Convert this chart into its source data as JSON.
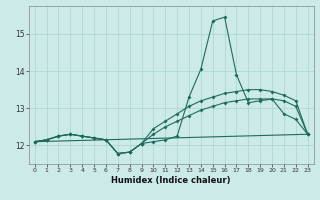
{
  "xlabel": "Humidex (Indice chaleur)",
  "background_color": "#cceae7",
  "grid_color": "#aad4d0",
  "line_color": "#1e6b5e",
  "xlim": [
    -0.5,
    23.5
  ],
  "ylim": [
    11.5,
    15.75
  ],
  "xticks": [
    0,
    1,
    2,
    3,
    4,
    5,
    6,
    7,
    8,
    9,
    10,
    11,
    12,
    13,
    14,
    15,
    16,
    17,
    18,
    19,
    20,
    21,
    22,
    23
  ],
  "yticks": [
    12,
    13,
    14,
    15
  ],
  "line1_x": [
    0,
    1,
    2,
    3,
    4,
    5,
    6,
    7,
    8,
    9,
    10,
    11,
    12,
    13,
    14,
    15,
    16,
    17,
    18,
    19,
    20,
    21,
    22,
    23
  ],
  "line1_y": [
    12.1,
    12.15,
    12.25,
    12.3,
    12.25,
    12.2,
    12.15,
    11.78,
    11.82,
    12.05,
    12.1,
    12.15,
    12.25,
    13.3,
    14.05,
    15.35,
    15.45,
    13.9,
    13.15,
    13.2,
    13.25,
    12.85,
    12.7,
    12.3
  ],
  "line2_x": [
    0,
    1,
    2,
    3,
    4,
    5,
    6,
    7,
    8,
    9,
    10,
    11,
    12,
    13,
    14,
    15,
    16,
    17,
    18,
    19,
    20,
    21,
    22,
    23
  ],
  "line2_y": [
    12.1,
    12.15,
    12.25,
    12.3,
    12.25,
    12.2,
    12.15,
    11.78,
    11.82,
    12.05,
    12.45,
    12.65,
    12.85,
    13.05,
    13.2,
    13.3,
    13.4,
    13.45,
    13.5,
    13.5,
    13.45,
    13.35,
    13.2,
    12.3
  ],
  "line3_x": [
    0,
    1,
    2,
    3,
    4,
    5,
    6,
    7,
    8,
    9,
    10,
    11,
    12,
    13,
    14,
    15,
    16,
    17,
    18,
    19,
    20,
    21,
    22,
    23
  ],
  "line3_y": [
    12.1,
    12.15,
    12.25,
    12.3,
    12.25,
    12.2,
    12.15,
    11.78,
    11.82,
    12.05,
    12.3,
    12.5,
    12.65,
    12.8,
    12.95,
    13.05,
    13.15,
    13.2,
    13.25,
    13.25,
    13.25,
    13.2,
    13.05,
    12.3
  ],
  "line4_x": [
    0,
    23
  ],
  "line4_y": [
    12.1,
    12.3
  ]
}
